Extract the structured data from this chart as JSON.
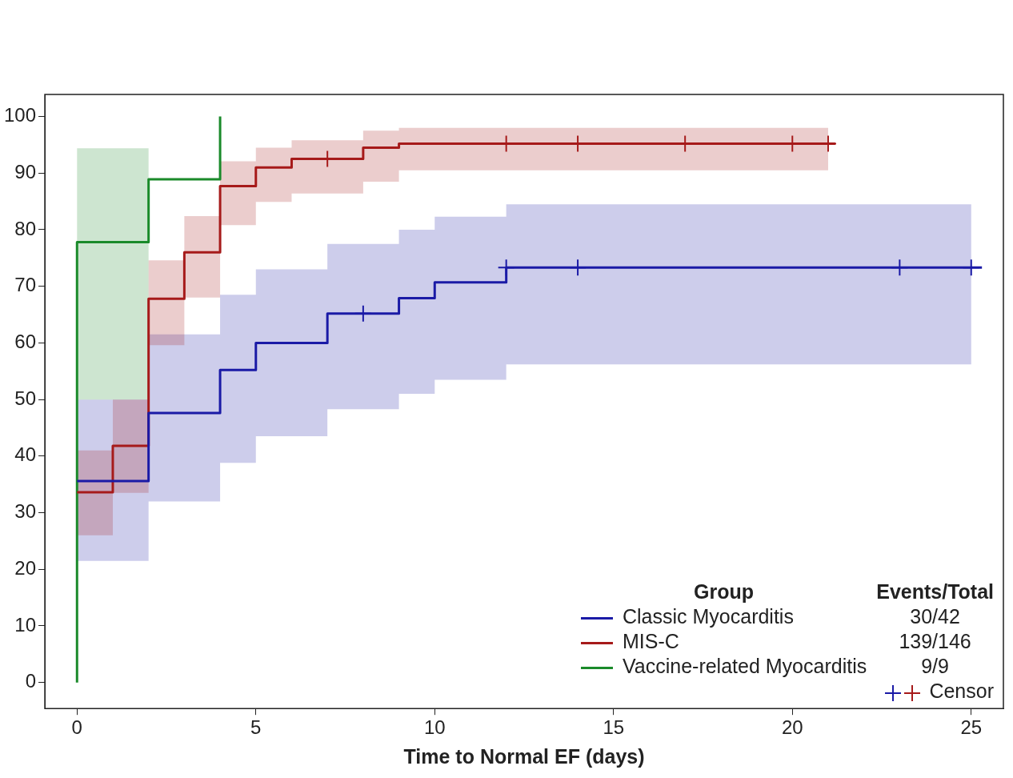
{
  "chart_data": {
    "type": "step",
    "xlabel": "Time to Normal EF (days)",
    "legend_title": "Group",
    "legend": "bottom right",
    "grid": false,
    "xlim": [
      -0.9,
      25.9
    ],
    "ylim": [
      -4.6,
      103.9
    ],
    "xticks": [
      0,
      5,
      10,
      15,
      20,
      25
    ],
    "yticks": [
      0,
      10,
      20,
      30,
      40,
      50,
      60,
      70,
      80,
      90,
      100
    ],
    "annotations": [
      "Events/Total",
      "30/42",
      "139/146",
      "9/9"
    ],
    "series": [
      {
        "name": "Classic Myocarditis",
        "color": "#1a1aa6",
        "x": [
          0,
          2,
          2,
          4,
          4,
          5,
          5,
          7,
          7,
          9,
          9,
          10,
          10,
          12,
          12,
          25,
          25.3
        ],
        "values": [
          35.6,
          35.6,
          47.6,
          47.6,
          55.2,
          55.2,
          60,
          60,
          65.2,
          65.2,
          67.9,
          67.9,
          70.7,
          70.7,
          73.3,
          73.3,
          73.3
        ],
        "lower": [
          21.5,
          21.5,
          32,
          32,
          38.8,
          38.8,
          43.5,
          43.5,
          48.3,
          48.3,
          51,
          51,
          53.5,
          53.5,
          56.2,
          56.2,
          null
        ],
        "upper": [
          50,
          50,
          61.5,
          61.5,
          68.5,
          68.5,
          73,
          73,
          77.5,
          77.5,
          80,
          80,
          82.3,
          82.3,
          84.5,
          84.5,
          null
        ]
      },
      {
        "name": "MIS-C",
        "color": "#a61a1a",
        "x": [
          0,
          1,
          1,
          2,
          2,
          3,
          3,
          4,
          4,
          5,
          5,
          6,
          6,
          8,
          8,
          9,
          9,
          21,
          21.2
        ],
        "values": [
          33.6,
          33.6,
          41.8,
          41.8,
          67.8,
          67.8,
          76,
          76,
          87.7,
          87.7,
          91,
          91,
          92.5,
          92.5,
          94.5,
          94.5,
          95.2,
          95.2,
          95.2
        ],
        "lower": [
          26,
          26,
          33.5,
          33.5,
          59.6,
          59.6,
          68,
          68,
          80.8,
          80.8,
          84.9,
          84.9,
          86.4,
          86.4,
          88.5,
          88.5,
          90.5,
          90.5,
          null
        ],
        "upper": [
          41,
          41,
          50,
          50,
          74.6,
          74.6,
          82.4,
          82.4,
          92.1,
          92.1,
          94.5,
          94.5,
          95.8,
          95.8,
          97.5,
          97.5,
          98,
          98,
          null
        ]
      },
      {
        "name": "Vaccine-related Myocarditis",
        "color": "#1a8a2a",
        "x": [
          0,
          0,
          2,
          2,
          4,
          4
        ],
        "values": [
          0,
          77.8,
          77.8,
          88.9,
          88.9,
          100
        ],
        "lower": [
          null,
          50,
          50,
          null,
          null,
          null
        ],
        "upper": [
          null,
          94.4,
          94.4,
          null,
          null,
          null
        ]
      },
      {
        "name": "Censor",
        "type": "scatter",
        "marker": "cross",
        "x": [
          8,
          12,
          14,
          23,
          25,
          7,
          12,
          14,
          17,
          20,
          21
        ],
        "values": [
          65.2,
          73.3,
          73.3,
          73.3,
          73.3,
          92.5,
          95.2,
          95.2,
          95.2,
          95.2,
          95.2
        ],
        "colors": [
          "#1a1aa6",
          "#1a1aa6",
          "#1a1aa6",
          "#1a1aa6",
          "#1a1aa6",
          "#a61a1a",
          "#a61a1a",
          "#a61a1a",
          "#a61a1a",
          "#a61a1a",
          "#a61a1a"
        ]
      }
    ]
  }
}
